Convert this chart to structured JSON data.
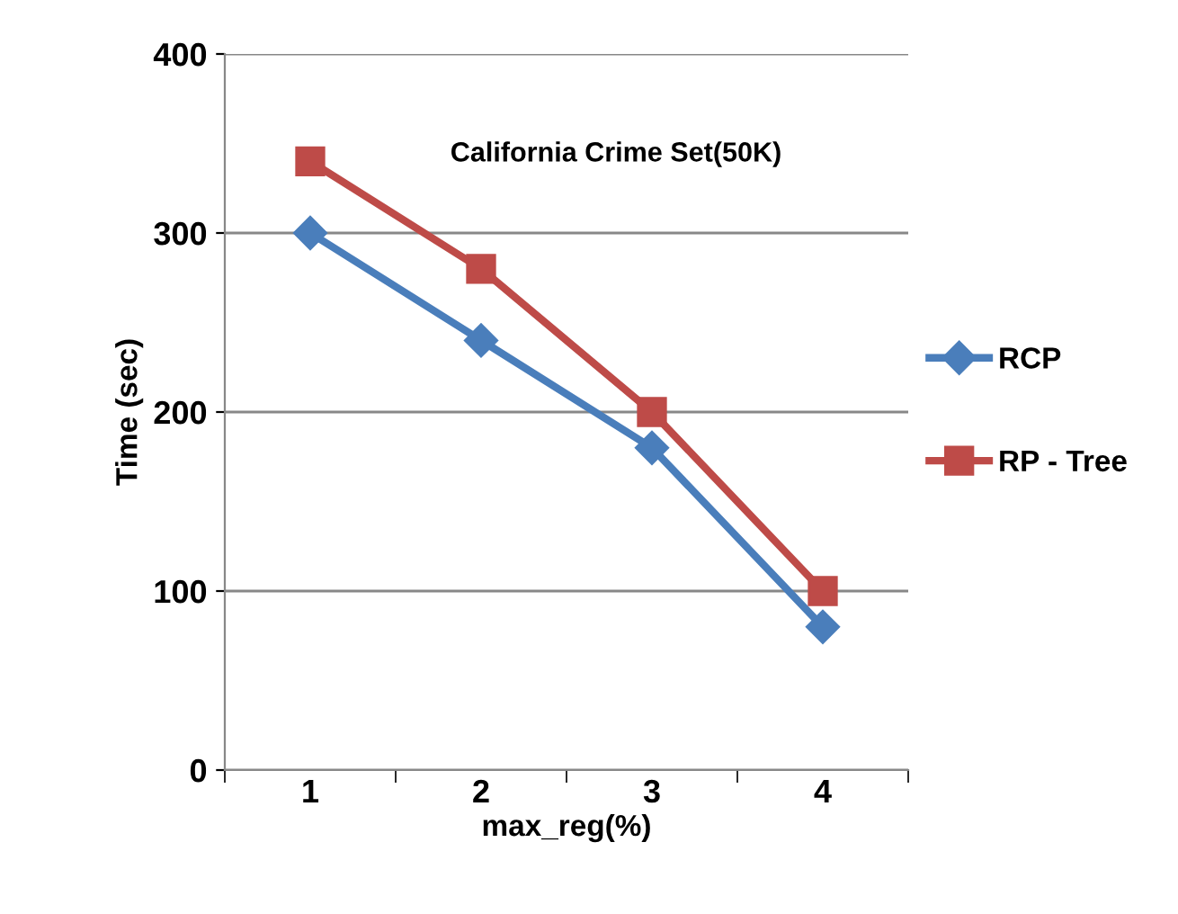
{
  "chart_data": {
    "type": "line",
    "xlabel": "max_reg(%)",
    "ylabel": "Time (sec)",
    "categories": [
      "1",
      "2",
      "3",
      "4"
    ],
    "series": [
      {
        "name": "RCP",
        "color": "#4a7ebb",
        "marker": "diamond",
        "values": [
          300,
          240,
          180,
          80
        ]
      },
      {
        "name": "RP - Tree",
        "color": "#be4b48",
        "marker": "square",
        "values": [
          340,
          280,
          200,
          100
        ]
      }
    ],
    "ylim": [
      0,
      400
    ],
    "yticks": [
      0,
      100,
      200,
      300,
      400
    ],
    "grid": "y",
    "legend": "right",
    "annotations": [
      "California Crime Set(50K)"
    ],
    "line_style": "solid"
  }
}
